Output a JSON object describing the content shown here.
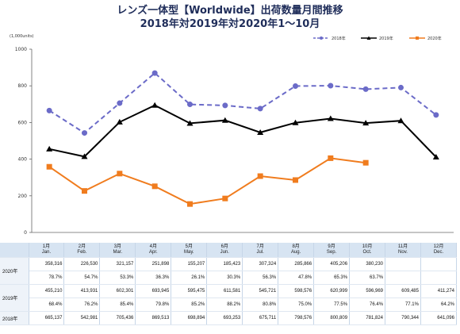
{
  "header": {
    "title_line1": "レンズ一体型【Worldwide】出荷数量月間推移",
    "title_line2": "2018年対2019年対2020年1～10月"
  },
  "chart_data": {
    "type": "line",
    "unit_label": "(1,000units)",
    "categories": [
      "1月 Jan.",
      "2月 Feb.",
      "3月 Mar.",
      "4月 Apr.",
      "5月 May.",
      "6月 Jun.",
      "7月 Jul.",
      "8月 Aug.",
      "9月 Sep.",
      "10月 Oct.",
      "11月 Nov.",
      "12月 Dec."
    ],
    "ylim": [
      0,
      1000
    ],
    "yticks": [
      0,
      200,
      400,
      600,
      800,
      1000
    ],
    "grid": false,
    "legend_position": "top-right",
    "series": [
      {
        "name": "2018年",
        "color": "#6b6bc8",
        "style": "dashed",
        "marker": "circle",
        "values": [
          665.137,
          542.981,
          705.436,
          869.513,
          698.894,
          693.253,
          675.711,
          798.576,
          800.809,
          781.824,
          790.344,
          641.096
        ]
      },
      {
        "name": "2019年",
        "color": "#000000",
        "style": "solid",
        "marker": "triangle",
        "values": [
          455.21,
          413.931,
          602.301,
          693.945,
          595.475,
          611.581,
          545.721,
          598.576,
          620.999,
          596.969,
          609.485,
          411.274
        ]
      },
      {
        "name": "2020年",
        "color": "#f07c1e",
        "style": "solid",
        "marker": "square",
        "values": [
          358.316,
          226.53,
          321.157,
          251.898,
          155.207,
          185.423,
          307.324,
          285.866,
          405.206,
          380.23,
          null,
          null
        ]
      }
    ]
  },
  "table": {
    "months": [
      {
        "jp": "1月",
        "en": "Jan."
      },
      {
        "jp": "2月",
        "en": "Feb."
      },
      {
        "jp": "3月",
        "en": "Mar."
      },
      {
        "jp": "4月",
        "en": "Apr."
      },
      {
        "jp": "5月",
        "en": "May."
      },
      {
        "jp": "6月",
        "en": "Jun."
      },
      {
        "jp": "7月",
        "en": "Jul."
      },
      {
        "jp": "8月",
        "en": "Aug."
      },
      {
        "jp": "9月",
        "en": "Sep."
      },
      {
        "jp": "10月",
        "en": "Oct."
      },
      {
        "jp": "11月",
        "en": "Nov."
      },
      {
        "jp": "12月",
        "en": "Dec."
      }
    ],
    "rows": [
      {
        "label": "2020年",
        "values": [
          "358,316",
          "226,530",
          "321,157",
          "251,898",
          "155,207",
          "185,423",
          "307,324",
          "285,866",
          "405,206",
          "380,230",
          "",
          ""
        ],
        "pcts": [
          "78.7%",
          "54.7%",
          "53.3%",
          "36.3%",
          "26.1%",
          "30.3%",
          "56.3%",
          "47.8%",
          "65.3%",
          "63.7%",
          "",
          ""
        ]
      },
      {
        "label": "2019年",
        "values": [
          "455,210",
          "413,931",
          "602,301",
          "693,945",
          "595,475",
          "611,581",
          "545,721",
          "598,576",
          "620,999",
          "596,969",
          "609,485",
          "411,274"
        ],
        "pcts": [
          "68.4%",
          "76.2%",
          "85.4%",
          "79.8%",
          "85.2%",
          "88.2%",
          "80.8%",
          "75.0%",
          "77.5%",
          "76.4%",
          "77.1%",
          "64.2%"
        ]
      },
      {
        "label": "2018年",
        "values": [
          "665,137",
          "542,981",
          "705,436",
          "869,513",
          "698,894",
          "693,253",
          "675,711",
          "798,576",
          "800,809",
          "781,824",
          "790,344",
          "641,096"
        ],
        "pcts": null
      }
    ]
  }
}
